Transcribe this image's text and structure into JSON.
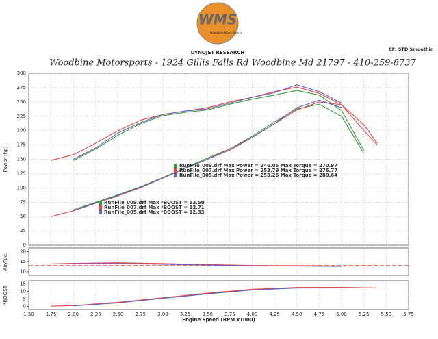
{
  "header": {
    "logo": "WMS",
    "logo_sub": "Woodbine Motor Sports",
    "brand": "DYNOJET RESEARCH",
    "correction": "CF: STD Smoothin",
    "title": "Woodbine Motorsports - 1924 Gillis Falls Rd Woodbine Md 21797 - 410-259-8737"
  },
  "chart_data": [
    {
      "type": "line",
      "ylabel": "Power (hp)",
      "xlim": [
        1.5,
        5.75
      ],
      "ylim": [
        0,
        300
      ],
      "yticks": [
        0,
        25,
        50,
        75,
        100,
        125,
        150,
        175,
        200,
        225,
        250,
        275,
        300
      ],
      "grid": true,
      "x": [
        1.75,
        2.0,
        2.25,
        2.5,
        2.75,
        3.0,
        3.25,
        3.5,
        3.75,
        4.0,
        4.25,
        4.5,
        4.75,
        5.0,
        5.25,
        5.4
      ],
      "series": [
        {
          "color": "#3a9a3a",
          "values": [
            null,
            148,
            168,
            192,
            212,
            226,
            232,
            236,
            246,
            255,
            262,
            270,
            262,
            235,
            165,
            null
          ]
        },
        {
          "color": "#e04848",
          "values": [
            148,
            158,
            178,
            200,
            218,
            228,
            234,
            240,
            250,
            258,
            268,
            276,
            265,
            245,
            210,
            178
          ]
        },
        {
          "color": "#6a60c0",
          "values": [
            null,
            150,
            170,
            196,
            214,
            228,
            234,
            238,
            248,
            258,
            266,
            280,
            268,
            248,
            null,
            null
          ]
        },
        {
          "color": "#3a9a3a",
          "values": [
            null,
            62,
            75,
            88,
            102,
            118,
            135,
            152,
            168,
            190,
            215,
            238,
            246,
            225,
            160,
            null
          ]
        },
        {
          "color": "#e04848",
          "values": [
            50,
            60,
            73,
            86,
            100,
            117,
            134,
            150,
            168,
            188,
            212,
            236,
            250,
            245,
            200,
            175
          ]
        },
        {
          "color": "#6a60c0",
          "values": [
            null,
            60,
            74,
            87,
            101,
            117,
            134,
            150,
            166,
            188,
            212,
            240,
            253,
            240,
            null,
            null
          ]
        }
      ],
      "annotations": [
        "RunFile_009.drf Max Power = 246.05     Max Torque = 270.97",
        "RunFile_007.drf Max Power = 253.79     Max Torque = 276.77",
        "RunFile_005.drf Max Power = 253.26     Max Torque = 280.64",
        "RunFile_009.drf Max *BOOST = 12.50",
        "RunFile_007.drf Max *BOOST = 12.71",
        "RunFile_005.drf Max *BOOST = 12.33"
      ]
    },
    {
      "type": "line",
      "ylabel": "Air/Fuel",
      "xlim": [
        1.5,
        5.75
      ],
      "ylim": [
        8,
        22
      ],
      "yticks": [
        10,
        15,
        20
      ],
      "reference": {
        "value": 13,
        "color": "#e04848"
      },
      "x": [
        1.75,
        2.0,
        2.5,
        3.0,
        3.5,
        4.0,
        4.5,
        5.0,
        5.4
      ],
      "series": [
        {
          "color": "#3a9a3a",
          "values": [
            null,
            14.0,
            14.2,
            13.8,
            13.4,
            12.9,
            12.8,
            12.6,
            null
          ]
        },
        {
          "color": "#e04848",
          "values": [
            13.8,
            14.1,
            14.4,
            14.0,
            13.5,
            13.0,
            12.9,
            12.7,
            12.8
          ]
        },
        {
          "color": "#6a60c0",
          "values": [
            null,
            13.9,
            14.0,
            13.6,
            13.2,
            12.8,
            12.7,
            12.6,
            null
          ]
        }
      ]
    },
    {
      "type": "line",
      "ylabel": "*BOOST",
      "xlabel": "Engine Speed (RPM x1000)",
      "xlim": [
        1.5,
        5.75
      ],
      "ylim": [
        -2,
        17
      ],
      "yticks": [
        0,
        5,
        10,
        15
      ],
      "xticks": [
        {
          "value": 1.5,
          "label": "1.50"
        },
        1.75,
        {
          "value": 2.0,
          "label": "2.00"
        },
        2.25,
        {
          "value": 2.5,
          "label": "2.50"
        },
        2.75,
        {
          "value": 3.0,
          "label": "3.00"
        },
        3.25,
        {
          "value": 3.5,
          "label": "3.50"
        },
        3.75,
        {
          "value": 4.0,
          "label": "4.00"
        },
        4.25,
        {
          "value": 4.5,
          "label": "4.50"
        },
        4.75,
        {
          "value": 5.0,
          "label": "5.00"
        },
        5.25,
        {
          "value": 5.5,
          "label": "5.50"
        },
        5.75
      ],
      "x": [
        1.75,
        2.0,
        2.5,
        3.0,
        3.5,
        4.0,
        4.5,
        5.0,
        5.4
      ],
      "series": [
        {
          "color": "#3a9a3a",
          "values": [
            null,
            0.5,
            2.5,
            5.5,
            8.5,
            11.0,
            12.4,
            12.5,
            null
          ]
        },
        {
          "color": "#e04848",
          "values": [
            0.2,
            0.6,
            2.8,
            5.8,
            8.8,
            11.4,
            12.6,
            12.7,
            12.3
          ]
        },
        {
          "color": "#6a60c0",
          "values": [
            null,
            0.4,
            2.4,
            5.4,
            8.3,
            10.9,
            12.2,
            12.3,
            null
          ]
        }
      ]
    }
  ]
}
